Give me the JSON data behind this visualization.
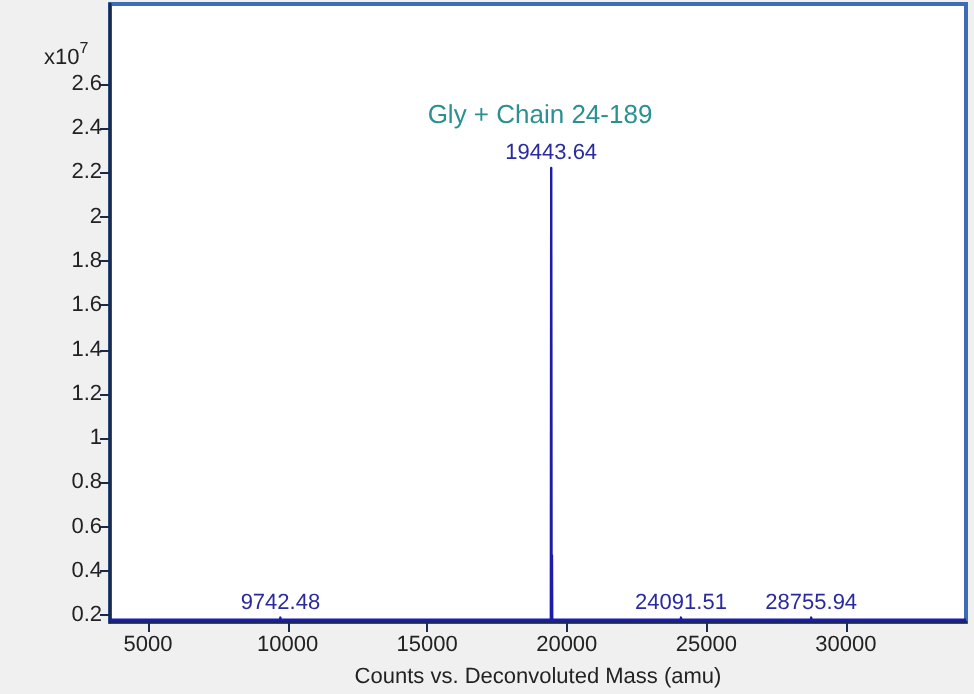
{
  "chart_data": {
    "type": "line",
    "xlabel": "Counts vs. Deconvoluted Mass (amu)",
    "ylabel": "x10$^{7}$",
    "xlim": [
      3640,
      34300
    ],
    "xticks": [
      5000,
      10000,
      15000,
      20000,
      25000,
      30000
    ],
    "ylim": [
      0.17,
      2.96
    ],
    "yticks": [
      0.2,
      0.4,
      0.6,
      0.8,
      1,
      1.2,
      1.4,
      1.6,
      1.8,
      2,
      2.2,
      2.4,
      2.6
    ],
    "grid": false,
    "marker": "none",
    "line_style": "solid",
    "annotations": [
      "Gly + Chain 24-189",
      {
        "text": "9742.48",
        "x": 9742.48,
        "y": 0.19
      },
      {
        "text": "19443.64",
        "x": 19443.64,
        "y": 2.22
      },
      {
        "text": "24091.51",
        "x": 24091.51,
        "y": 0.19
      },
      {
        "text": "28755.94",
        "x": 28755.94,
        "y": 0.19
      }
    ],
    "series": [
      {
        "color": "#1c1ca8",
        "x": [
          3640,
          9730,
          9742.48,
          9755,
          19430,
          19443.64,
          19457,
          19470,
          19480,
          24080,
          24091.51,
          24103,
          28745,
          28755.94,
          28767,
          34300
        ],
        "values": [
          0.18,
          0.18,
          0.19,
          0.18,
          0.18,
          2.22,
          0.18,
          0.47,
          0.18,
          0.18,
          0.19,
          0.18,
          0.18,
          0.19,
          0.18,
          0.18
        ]
      }
    ]
  }
}
